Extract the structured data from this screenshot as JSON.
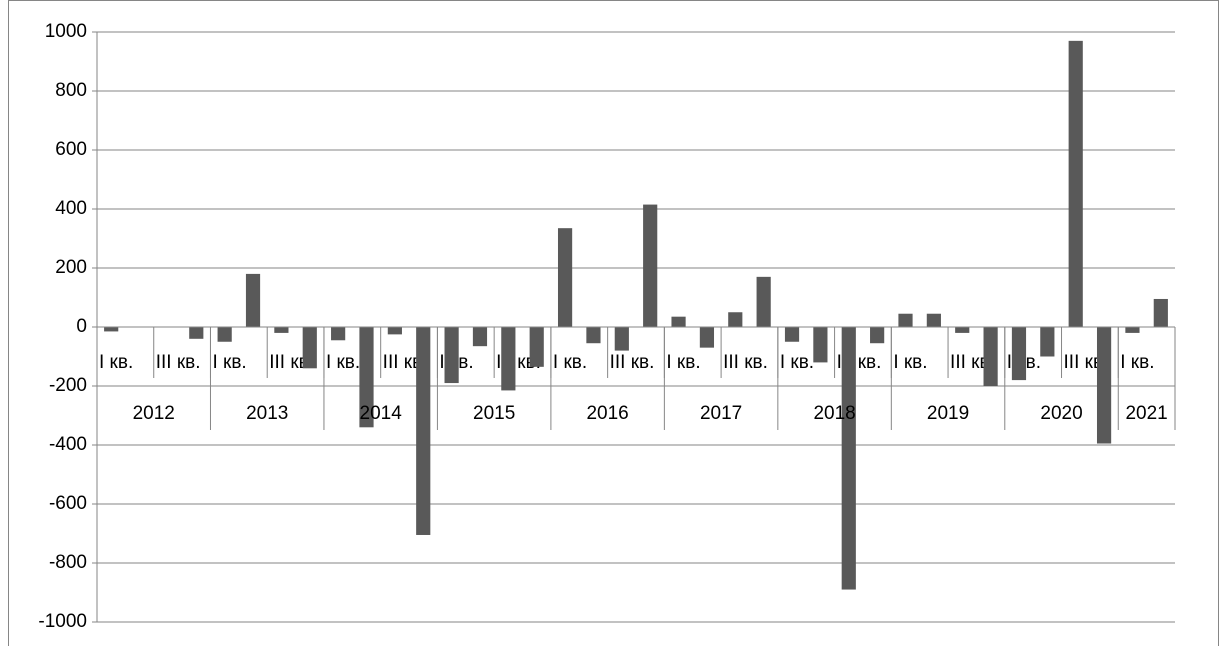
{
  "chart_data": {
    "type": "bar",
    "categories": [
      "I кв.",
      null,
      "III кв.",
      null,
      "I кв.",
      null,
      "III кв.",
      null,
      "I кв.",
      null,
      "III кв.",
      null,
      "I кв.",
      null,
      "III кв.",
      null,
      "I кв.",
      null,
      "III кв.",
      null,
      "I кв.",
      null,
      "III кв.",
      null,
      "I кв.",
      null,
      "III кв.",
      null,
      "I кв.",
      null,
      "III кв.",
      null,
      "I кв.",
      null,
      "III кв.",
      null,
      "I кв.",
      null
    ],
    "years": [
      "2012",
      "2013",
      "2014",
      "2015",
      "2016",
      "2017",
      "2018",
      "2019",
      "2020",
      "2021"
    ],
    "values": [
      -15,
      0,
      0,
      -40,
      -50,
      180,
      -20,
      -140,
      -45,
      -340,
      -25,
      -705,
      -190,
      -65,
      -215,
      -135,
      335,
      -55,
      -80,
      415,
      35,
      -70,
      50,
      170,
      -50,
      -120,
      -890,
      -55,
      45,
      45,
      -20,
      -200,
      -180,
      -100,
      970,
      -395,
      -20,
      95
    ],
    "color": "#595959",
    "ylim": [
      -1000,
      1000
    ],
    "yticks": [
      -1000,
      -800,
      -600,
      -400,
      -200,
      0,
      200,
      400,
      600,
      800,
      1000
    ],
    "grid": true
  }
}
